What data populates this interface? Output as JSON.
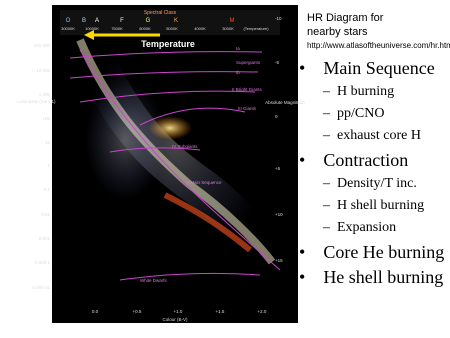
{
  "header": {
    "title_lines": [
      "HR Diagram for",
      "nearby stars"
    ],
    "url": "http://www.atlasoftheuniverse.com/hr.html"
  },
  "bullets": [
    {
      "text": "Main Sequence",
      "sub": [
        "H burning",
        "pp/CNO",
        "exhaust core H"
      ]
    },
    {
      "text": "Contraction",
      "sub": [
        "Density/T inc.",
        "H shell burning",
        "Expansion"
      ]
    },
    {
      "text": "Core He burning",
      "sub": []
    },
    {
      "text": "He shell burning",
      "sub": []
    }
  ],
  "diagram": {
    "spectral_title": "Spectral Class",
    "spectral_classes": [
      "O",
      "B",
      "A",
      "F",
      "G",
      "K",
      "M"
    ],
    "temperatures": [
      "30000K",
      "10000K",
      "7500K",
      "6000K",
      "5000K",
      "4000K",
      "3000K",
      "(Temperature)"
    ],
    "arrow_label": "Temperature",
    "luminosity_label": "Luminosity (Sun=1)",
    "luminosity_ticks": [
      "100 000",
      "10 000",
      "1 000",
      "100",
      "10",
      "1",
      "0.1",
      "0.01",
      "0.001",
      "0.000 1",
      "0.000 01"
    ],
    "magnitude_label": "Absolute Magnitude",
    "magnitude_ticks": [
      "-10",
      "-5",
      "0",
      "+5",
      "+10",
      "+15"
    ],
    "colour_label": "Colour (B-V)",
    "colour_ticks": [
      "0.0",
      "+0.5",
      "+1.0",
      "+1.5",
      "+2.0"
    ],
    "branches": [
      "Ia",
      "Supergiants",
      "Ib",
      "II Bright Giants",
      "III  Giants",
      "IV Subgiants",
      "V  Main Sequence",
      "White Dwarfs"
    ]
  }
}
